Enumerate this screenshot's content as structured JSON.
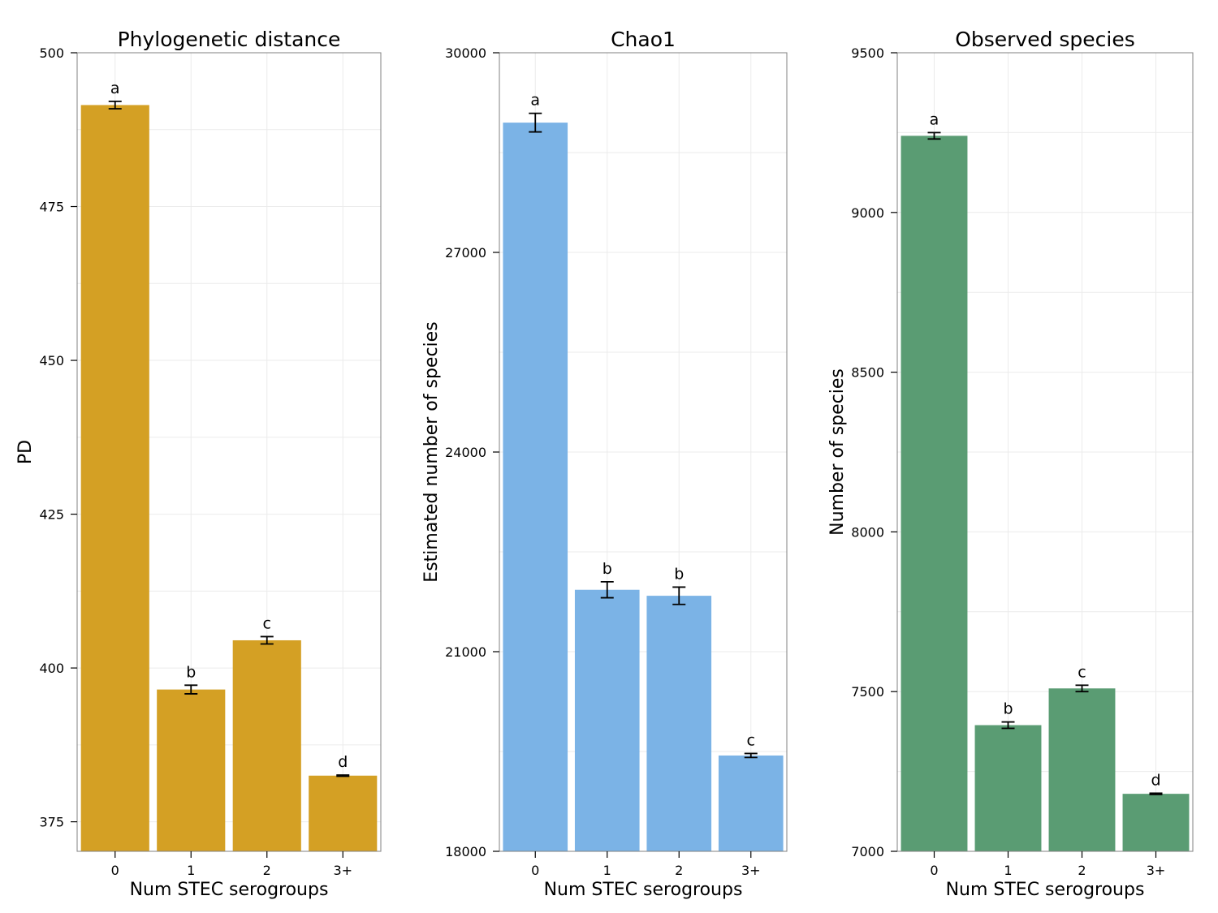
{
  "chart_data": [
    {
      "type": "bar",
      "title": "Phylogenetic distance",
      "xlabel": "Num STEC serogroups",
      "ylabel": "PD",
      "categories": [
        "0",
        "1",
        "2",
        "3+"
      ],
      "values": [
        491.5,
        396.5,
        404.5,
        382.5
      ],
      "errors": [
        0.6,
        0.7,
        0.6,
        0.1
      ],
      "labels": [
        "a",
        "b",
        "c",
        "d"
      ],
      "ylim": [
        370.2,
        500
      ],
      "yticks": [
        375,
        400,
        425,
        450,
        475,
        500
      ],
      "ytick_labels": [
        "375",
        "400",
        "425",
        "450",
        "475",
        "500"
      ],
      "color": "#D4A024",
      "grid": true
    },
    {
      "type": "bar",
      "title": "Chao1",
      "xlabel": "Num STEC serogroups",
      "ylabel": "Estimated number of species",
      "categories": [
        "0",
        "1",
        "2",
        "3+"
      ],
      "values": [
        28950,
        21930,
        21840,
        19440
      ],
      "errors": [
        140,
        120,
        130,
        30
      ],
      "labels": [
        "a",
        "b",
        "b",
        "c"
      ],
      "ylim": [
        18000,
        30000
      ],
      "yticks": [
        18000,
        21000,
        24000,
        27000,
        30000
      ],
      "ytick_labels": [
        "18000",
        "21000",
        "24000",
        "27000",
        "30000"
      ],
      "color": "#7BB3E6",
      "grid": true
    },
    {
      "type": "bar",
      "title": "Observed species",
      "xlabel": "Num STEC serogroups",
      "ylabel": "Number of species",
      "categories": [
        "0",
        "1",
        "2",
        "3+"
      ],
      "values": [
        9240,
        7395,
        7510,
        7180
      ],
      "errors": [
        10,
        10,
        10,
        2
      ],
      "labels": [
        "a",
        "b",
        "c",
        "d"
      ],
      "ylim": [
        7000,
        9500
      ],
      "yticks": [
        7000,
        7500,
        8000,
        8500,
        9000,
        9500
      ],
      "ytick_labels": [
        "7000",
        "7500",
        "8000",
        "8500",
        "9000",
        "9500"
      ],
      "color": "#5A9C73",
      "grid": true
    }
  ]
}
